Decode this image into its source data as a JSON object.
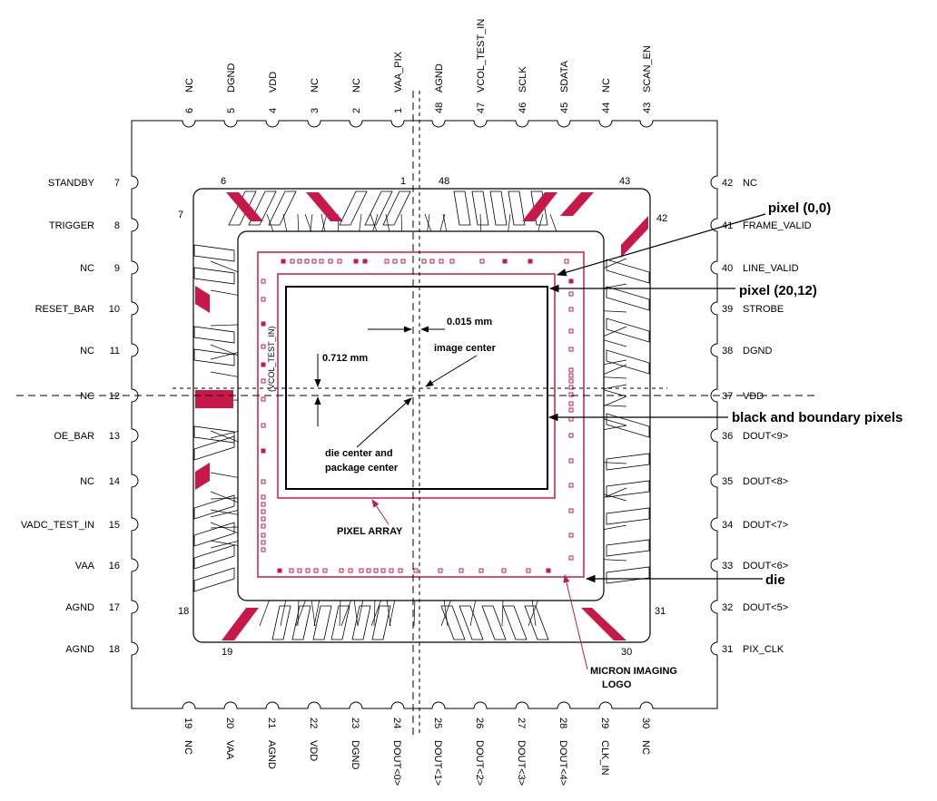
{
  "colors": {
    "accent": "#c8184a",
    "line": "#000000",
    "background": "#ffffff"
  },
  "pins": {
    "top": [
      {
        "num": "6",
        "label": "NC"
      },
      {
        "num": "5",
        "label": "DGND"
      },
      {
        "num": "4",
        "label": "VDD"
      },
      {
        "num": "3",
        "label": "NC"
      },
      {
        "num": "2",
        "label": "NC"
      },
      {
        "num": "1",
        "label": "VAA_PIX"
      },
      {
        "num": "48",
        "label": "AGND"
      },
      {
        "num": "47",
        "label": "VCOL_TEST_IN"
      },
      {
        "num": "46",
        "label": "SCLK"
      },
      {
        "num": "45",
        "label": "SDATA"
      },
      {
        "num": "44",
        "label": "NC"
      },
      {
        "num": "43",
        "label": "SCAN_EN"
      }
    ],
    "left": [
      {
        "num": "7",
        "label": "STANDBY"
      },
      {
        "num": "8",
        "label": "TRIGGER"
      },
      {
        "num": "9",
        "label": "NC"
      },
      {
        "num": "10",
        "label": "RESET_BAR"
      },
      {
        "num": "11",
        "label": "NC"
      },
      {
        "num": "12",
        "label": "NC"
      },
      {
        "num": "13",
        "label": "OE_BAR"
      },
      {
        "num": "14",
        "label": "NC"
      },
      {
        "num": "15",
        "label": "VADC_TEST_IN"
      },
      {
        "num": "16",
        "label": "VAA"
      },
      {
        "num": "17",
        "label": "AGND"
      },
      {
        "num": "18",
        "label": "AGND"
      }
    ],
    "right": [
      {
        "num": "42",
        "label": "NC"
      },
      {
        "num": "41",
        "label": "FRAME_VALID"
      },
      {
        "num": "40",
        "label": "LINE_VALID"
      },
      {
        "num": "39",
        "label": "STROBE"
      },
      {
        "num": "38",
        "label": "DGND"
      },
      {
        "num": "37",
        "label": "VDD"
      },
      {
        "num": "36",
        "label": "DOUT<9>"
      },
      {
        "num": "35",
        "label": "DOUT<8>"
      },
      {
        "num": "34",
        "label": "DOUT<7>"
      },
      {
        "num": "33",
        "label": "DOUT<6>"
      },
      {
        "num": "32",
        "label": "DOUT<5>"
      },
      {
        "num": "31",
        "label": "PIX_CLK"
      }
    ],
    "bottom": [
      {
        "num": "19",
        "label": "NC"
      },
      {
        "num": "20",
        "label": "VAA"
      },
      {
        "num": "21",
        "label": "AGND"
      },
      {
        "num": "22",
        "label": "VDD"
      },
      {
        "num": "23",
        "label": "DGND"
      },
      {
        "num": "24",
        "label": "DOUT<0>"
      },
      {
        "num": "25",
        "label": "DOUT<1>"
      },
      {
        "num": "26",
        "label": "DOUT<2>"
      },
      {
        "num": "27",
        "label": "DOUT<3>"
      },
      {
        "num": "28",
        "label": "DOUT<4>"
      },
      {
        "num": "29",
        "label": "CLK_IN"
      },
      {
        "num": "30",
        "label": "NC"
      }
    ]
  },
  "corner_numbers": {
    "top_left_a": "6",
    "top_left_b": "7",
    "top_center_a": "1",
    "top_center_b": "48",
    "top_right_a": "43",
    "top_right_b": "42",
    "bottom_left_a": "18",
    "bottom_left_b": "19",
    "bottom_right_a": "30",
    "bottom_right_b": "31"
  },
  "callouts": {
    "pixel_00": "pixel (0,0)",
    "pixel_2012": "pixel (20,12)",
    "black_boundary": "black and boundary pixels",
    "die": "die",
    "offset_x": "0.015 mm",
    "offset_y": "0.712 mm",
    "image_center": "image center",
    "die_center_1": "die center and",
    "die_center_2": "package center",
    "pixel_array": "PIXEL ARRAY",
    "logo_1": "MICRON IMAGING",
    "logo_2": "LOGO",
    "vcol_label": "(VCOL_TEST_IN)"
  }
}
